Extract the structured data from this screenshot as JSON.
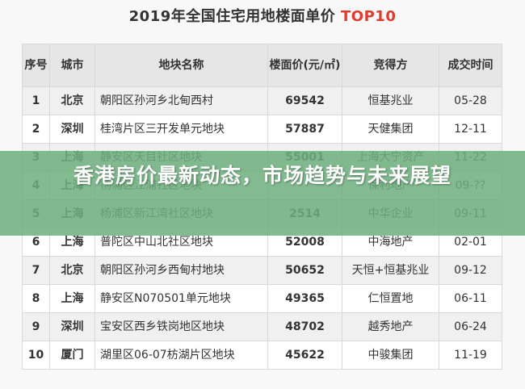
{
  "title": {
    "main": "2019年全国住宅用地楼面单价",
    "accent": "TOP10"
  },
  "table": {
    "headers": {
      "no": "序号",
      "city": "城市",
      "name": "地块名称",
      "price": "楼面价(元/㎡)",
      "buyer": "竞得方",
      "date": "成交时间"
    },
    "rows": [
      {
        "no": "1",
        "city": "北京",
        "name": "朝阳区孙河乡北甸西村",
        "price": "69542",
        "buyer": "恒基兆业",
        "date": "05-28"
      },
      {
        "no": "2",
        "city": "深圳",
        "name": "桂湾片区三开发单元地块",
        "price": "57887",
        "buyer": "天健集团",
        "date": "12-11"
      },
      {
        "no": "3",
        "city": "上海",
        "name": "静安区天目社区地块",
        "price": "55001",
        "buyer": "上海大宁资产",
        "date": "11-22"
      },
      {
        "no": "4",
        "city": "上海",
        "name": "杨浦区江浦社区地块",
        "price": "",
        "buyer": "保利地产",
        "date": "09-??"
      },
      {
        "no": "5",
        "city": "上海",
        "name": "杨浦区新江湾社区地块",
        "price": "2514",
        "buyer": "中华企业",
        "date": "09-11"
      },
      {
        "no": "6",
        "city": "上海",
        "name": "普陀区中山北社区地块",
        "price": "52008",
        "buyer": "中海地产",
        "date": "02-01"
      },
      {
        "no": "7",
        "city": "北京",
        "name": "朝阳区孙河乡西甸村地块",
        "price": "50652",
        "buyer": "天恒+恒基兆业",
        "date": "09-12"
      },
      {
        "no": "8",
        "city": "上海",
        "name": "静安区N070501单元地块",
        "price": "49365",
        "buyer": "仁恒置地",
        "date": "06-11"
      },
      {
        "no": "9",
        "city": "深圳",
        "name": "宝安区西乡铁岗地区地块",
        "price": "48702",
        "buyer": "越秀地产",
        "date": "06-24"
      },
      {
        "no": "10",
        "city": "厦门",
        "name": "湖里区06-07枋湖片区地块",
        "price": "45622",
        "buyer": "中骏集团",
        "date": "11-19"
      }
    ]
  },
  "banner": {
    "text": "香港房价最新动态，市场趋势与未来展望"
  }
}
